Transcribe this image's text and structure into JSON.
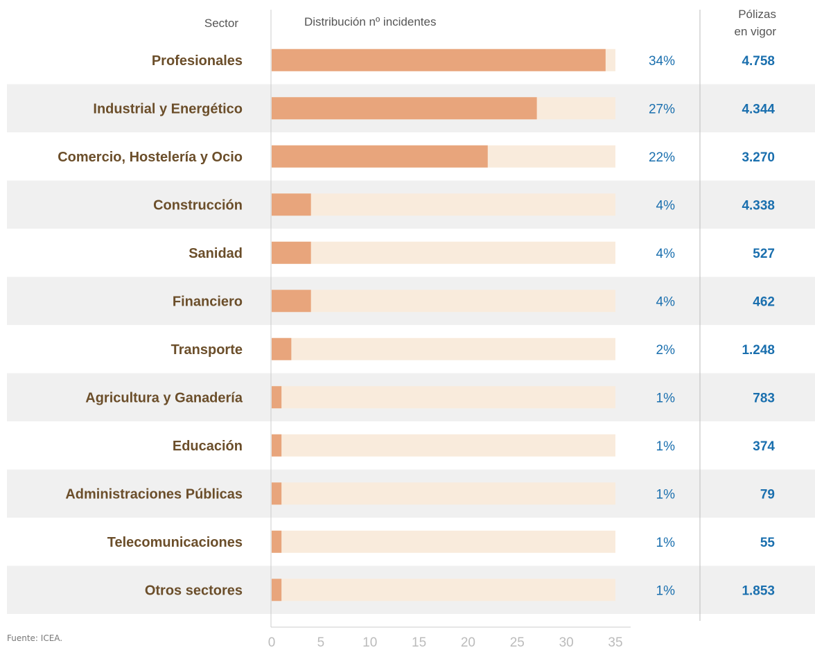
{
  "headers": {
    "sector": "Sector",
    "distribution": "Distribución nº incidentes",
    "policies_line1": "Pólizas",
    "policies_line2": "en vigor"
  },
  "source": "Fuente: ICEA.",
  "colors": {
    "bar": "#e8a57c",
    "track": "#f9ebdc",
    "label": "#6b4e2a",
    "pct": "#1a6fae",
    "polizas": "#1a6fae",
    "band": "#f0f0f0",
    "tick": "#bbbbbb"
  },
  "chart_data": {
    "type": "bar",
    "orientation": "horizontal",
    "categories": [
      "Profesionales",
      "Industrial y Energético",
      "Comercio, Hostelería y Ocio",
      "Construcción",
      "Sanidad",
      "Financiero",
      "Transporte",
      "Agricultura y Ganadería",
      "Educación",
      "Administraciones Públicas",
      "Telecomunicaciones",
      "Otros sectores"
    ],
    "values": [
      34,
      27,
      22,
      4,
      4,
      4,
      2,
      1,
      1,
      1,
      1,
      1
    ],
    "value_labels": [
      "34%",
      "27%",
      "22%",
      "4%",
      "4%",
      "4%",
      "2%",
      "1%",
      "1%",
      "1%",
      "1%",
      "1%"
    ],
    "polizas_en_vigor": [
      "4.758",
      "4.344",
      "3.270",
      "4.338",
      "527",
      "462",
      "1.248",
      "783",
      "374",
      "79",
      "55",
      "1.853"
    ],
    "xlim": [
      0,
      35
    ],
    "xticks": [
      0,
      5,
      10,
      15,
      20,
      25,
      30,
      35
    ]
  }
}
